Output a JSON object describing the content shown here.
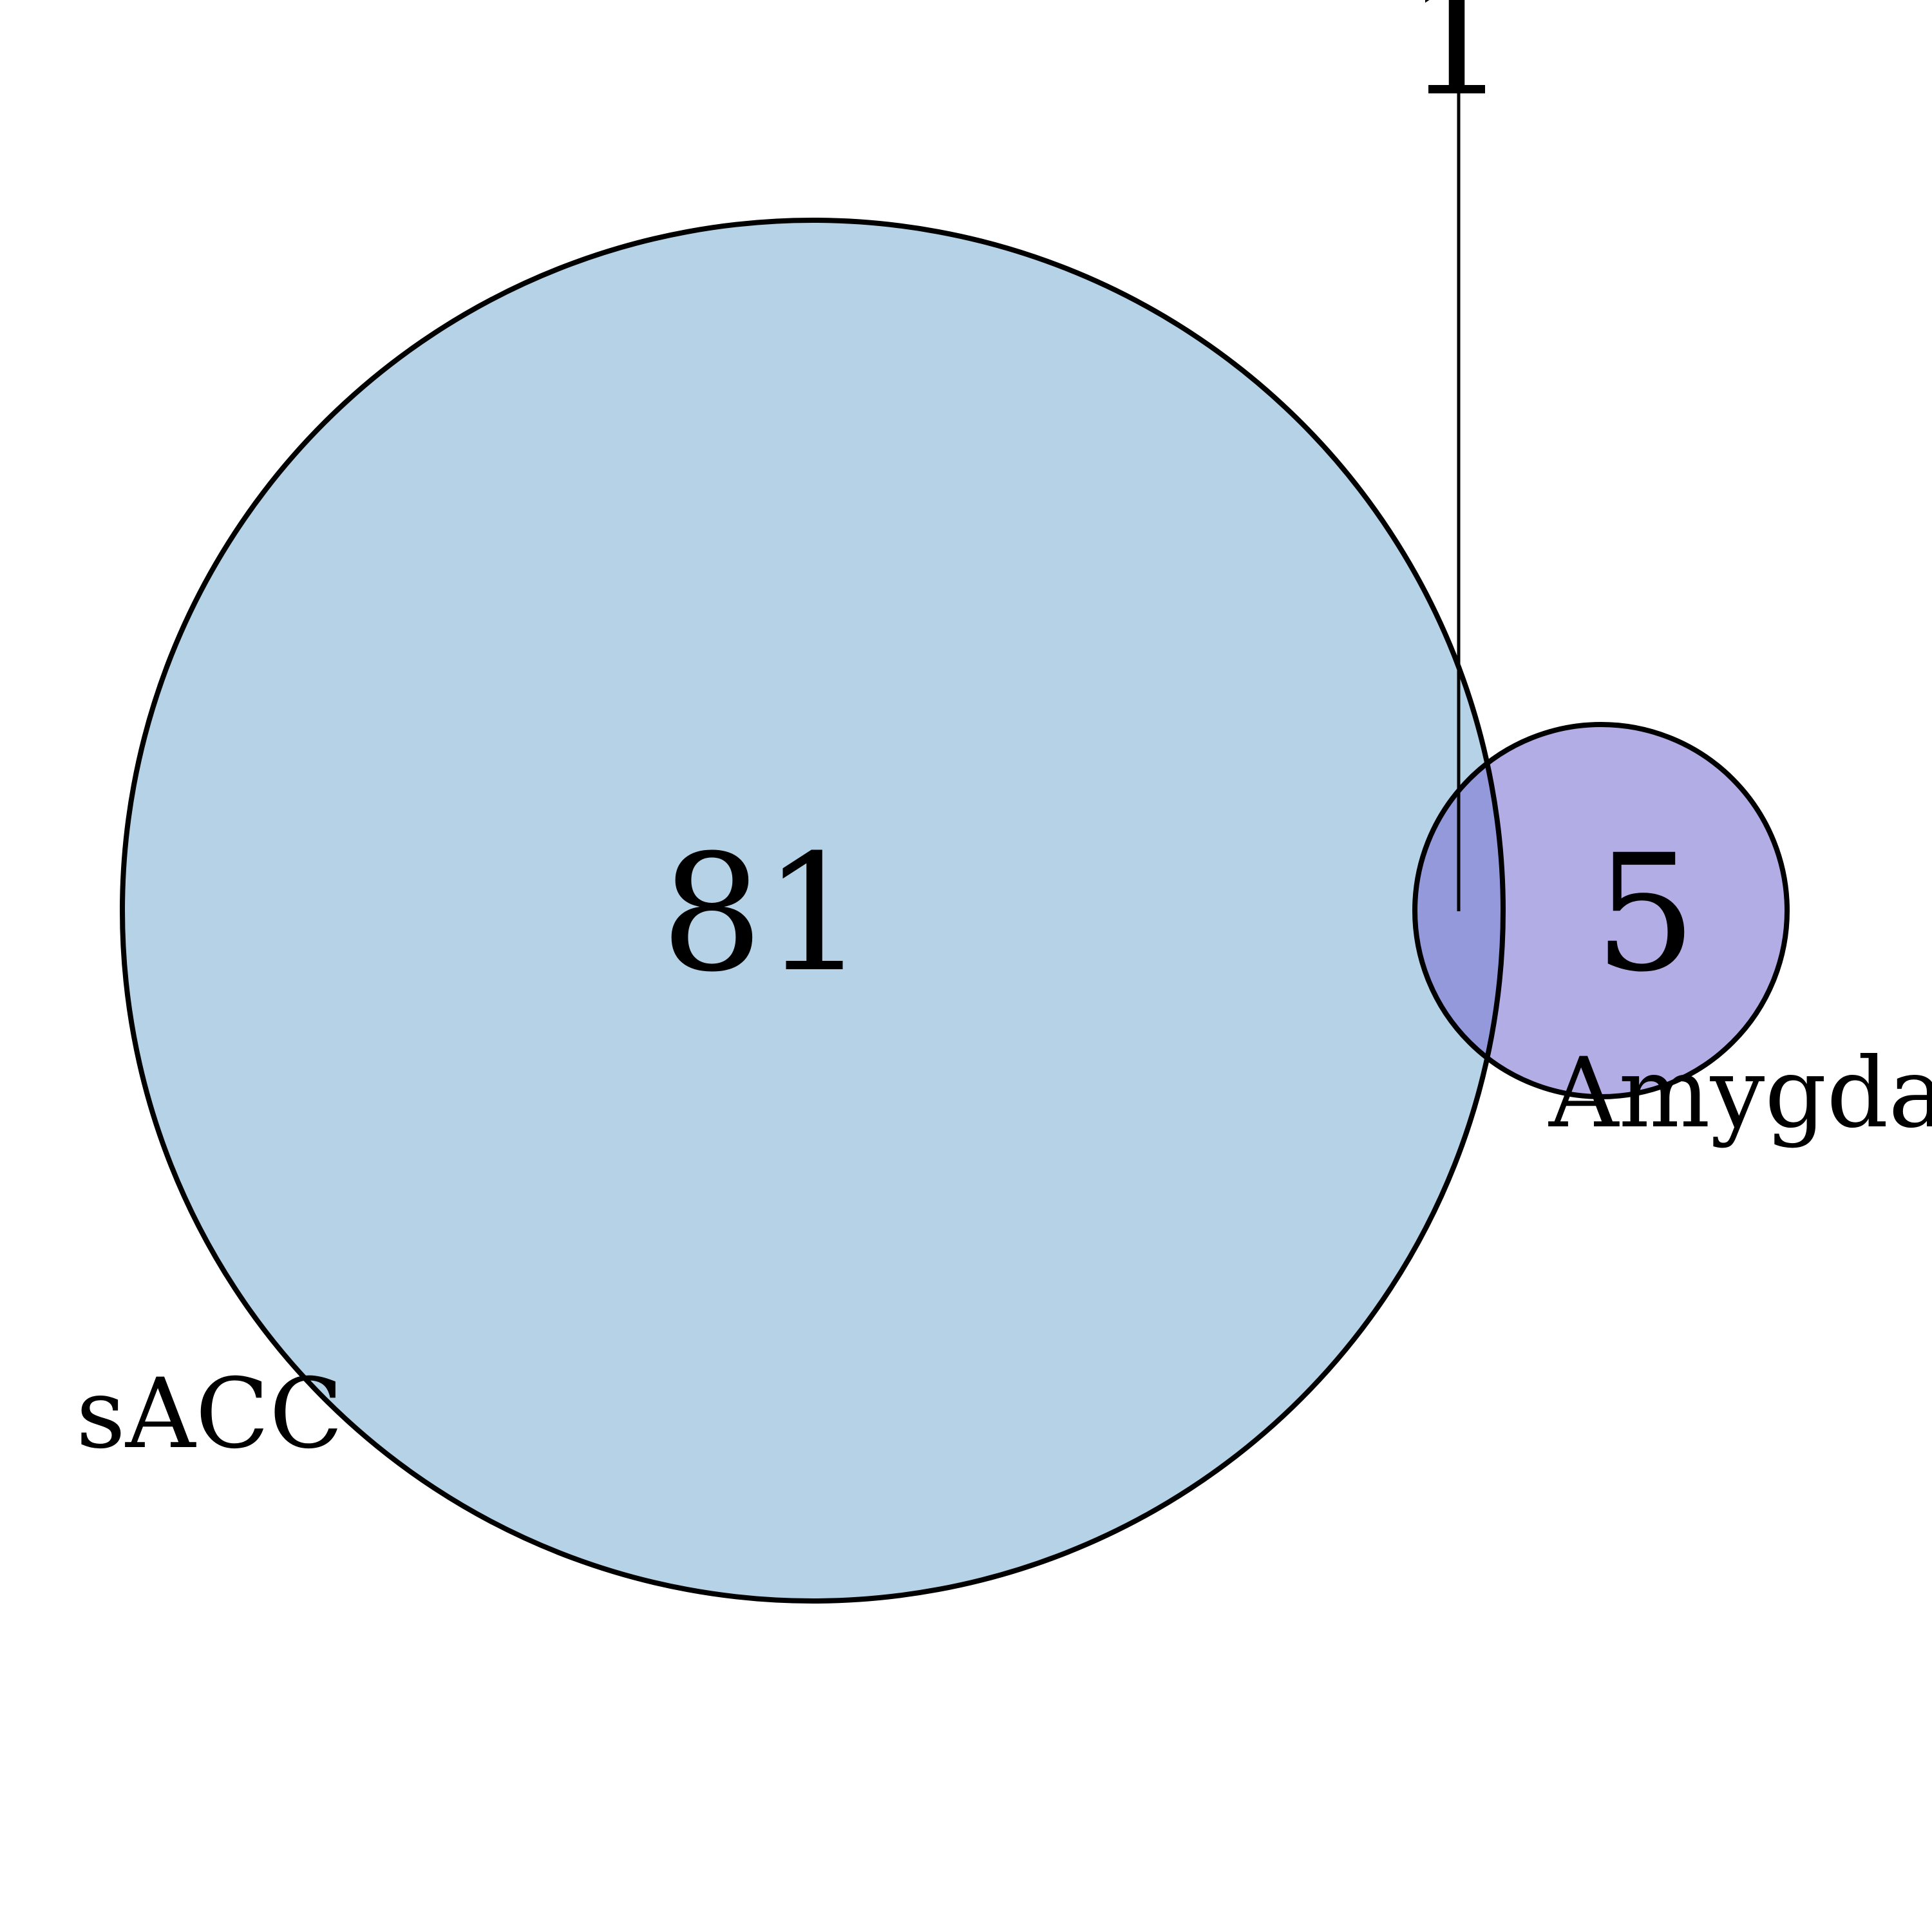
{
  "diagram": {
    "type": "venn2",
    "sets": [
      {
        "name": "sACC",
        "color": "#b6d2e6"
      },
      {
        "name": "Amygdala",
        "color": "#b3ade5"
      }
    ],
    "region_counts": {
      "sACC_only": "81",
      "Amygdala_only": "5",
      "intersection": "1"
    },
    "intersection_color": "#9499dc",
    "outline_color": "#000000"
  }
}
